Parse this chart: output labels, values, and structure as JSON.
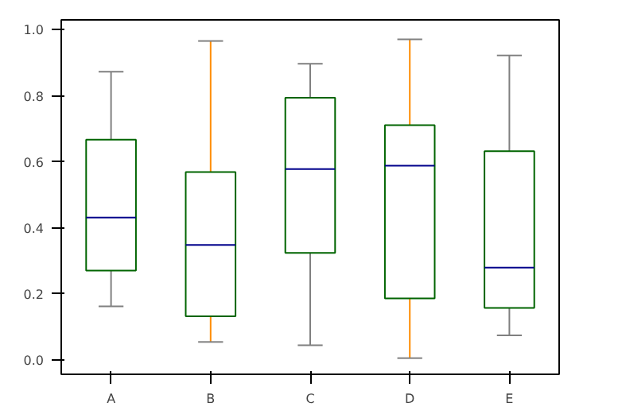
{
  "chart_data": {
    "type": "box",
    "categories": [
      "A",
      "B",
      "C",
      "D",
      "E"
    ],
    "series": [
      {
        "color": "#006400",
        "boxes": [
          {
            "low": 0.162,
            "q1": 0.27,
            "median": 0.431,
            "q3": 0.667,
            "high": 0.873
          },
          {
            "low": 0.054,
            "q1": 0.132,
            "median": 0.348,
            "q3": 0.569,
            "high": 0.966
          },
          {
            "low": 0.044,
            "q1": 0.324,
            "median": 0.578,
            "q3": 0.794,
            "high": 0.897
          },
          {
            "low": 0.005,
            "q1": 0.186,
            "median": 0.588,
            "q3": 0.711,
            "high": 0.971
          },
          {
            "low": 0.074,
            "q1": 0.157,
            "median": 0.279,
            "q3": 0.632,
            "high": 0.922
          }
        ]
      }
    ],
    "ylim": [
      -0.044,
      1.03
    ],
    "yticks": [
      {
        "value": 0,
        "label": "0.0"
      },
      0.2,
      0.4,
      0.6,
      0.8,
      {
        "value": 1,
        "label": "1.0"
      }
    ],
    "grid": false
  }
}
